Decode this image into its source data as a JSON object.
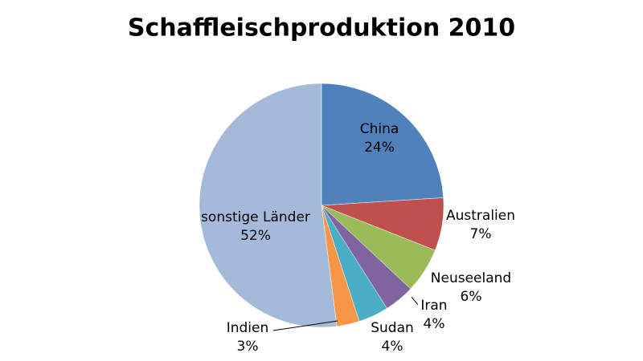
{
  "chart_data": {
    "type": "pie",
    "title": "Schaffleischproduktion 2010",
    "categories": [
      "China",
      "Australien",
      "Neuseeland",
      "Iran",
      "Sudan",
      "Indien",
      "sonstige Länder"
    ],
    "values": [
      24,
      7,
      6,
      4,
      4,
      3,
      52
    ],
    "value_labels": [
      "24%",
      "7%",
      "6%",
      "4%",
      "4%",
      "3%",
      "52%"
    ],
    "colors": [
      "#4f81bd",
      "#c0504d",
      "#9bbb59",
      "#8064a2",
      "#4bacc6",
      "#f79646",
      "#a5b9d9"
    ]
  }
}
